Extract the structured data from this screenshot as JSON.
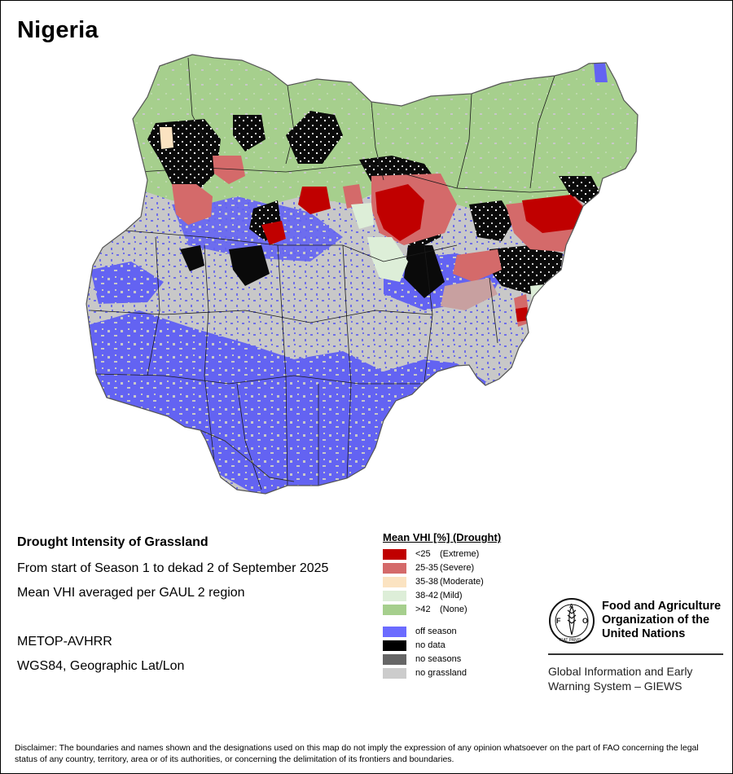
{
  "map": {
    "title": "Nigeria"
  },
  "info": {
    "heading": "Drought Intensity of Grassland",
    "period": "From start of Season 1 to dekad 2 of September 2025",
    "method": "Mean VHI averaged per GAUL 2 region",
    "sensor": "METOP-AVHRR",
    "projection": "WGS84, Geographic Lat/Lon"
  },
  "legend": {
    "title": "Mean VHI [%] (Drought)",
    "classes": [
      {
        "range": "<25",
        "label": "(Extreme)",
        "color": "#c00000"
      },
      {
        "range": "25-35",
        "label": "(Severe)",
        "color": "#d46a6a"
      },
      {
        "range": "35-38",
        "label": "(Moderate)",
        "color": "#fbe3c1"
      },
      {
        "range": "38-42",
        "label": "(Mild)",
        "color": "#ddeed8"
      },
      {
        "range": ">42",
        "label": "(None)",
        "color": "#a6cf8d"
      }
    ],
    "other": [
      {
        "label": "off season",
        "color": "#6b6bff"
      },
      {
        "label": "no data",
        "color": "#000000"
      },
      {
        "label": "no seasons",
        "color": "#666666"
      },
      {
        "label": "no grassland",
        "color": "#cccccc"
      }
    ]
  },
  "branding": {
    "logo_text": "FAO",
    "logo_motto": "FIAT PANIS",
    "org_name": "Food and Agriculture Organization of the United Nations",
    "system_name": "Global Information and Early Warning System – GIEWS"
  },
  "disclaimer": "Disclaimer: The boundaries and names shown and the designations used on this map do not imply the expression of any opinion whatsoever on the part of FAO concerning the legal status of any country, territory, area or of its authorities, or concerning the delimitation of its frontiers and boundaries."
}
